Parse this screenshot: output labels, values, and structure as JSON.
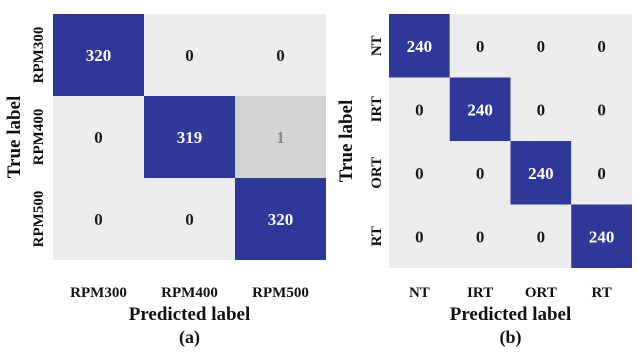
{
  "colors": {
    "max": "#2f3799",
    "low": "#ededed",
    "mid": "#d4d4d4",
    "divider": "#ffffff",
    "dark_text": "#1a1a1a",
    "light_text": "#ffffff",
    "mid_text": "#888888"
  },
  "chart_data": [
    {
      "type": "heatmap",
      "caption": "(a)",
      "xlabel": "Predicted label",
      "ylabel": "True label",
      "x_categories": [
        "RPM300",
        "RPM400",
        "RPM500"
      ],
      "y_categories": [
        "RPM300",
        "RPM400",
        "RPM500"
      ],
      "values": [
        [
          320,
          0,
          0
        ],
        [
          0,
          319,
          1
        ],
        [
          0,
          0,
          320
        ]
      ],
      "grid": false,
      "legend": "none"
    },
    {
      "type": "heatmap",
      "caption": "(b)",
      "xlabel": "Predicted label",
      "ylabel": "True label",
      "x_categories": [
        "NT",
        "IRT",
        "ORT",
        "RT"
      ],
      "y_categories": [
        "NT",
        "IRT",
        "ORT",
        "RT"
      ],
      "values": [
        [
          240,
          0,
          0,
          0
        ],
        [
          0,
          240,
          0,
          0
        ],
        [
          0,
          0,
          240,
          0
        ],
        [
          0,
          0,
          0,
          240
        ]
      ],
      "grid": false,
      "legend": "none"
    }
  ]
}
